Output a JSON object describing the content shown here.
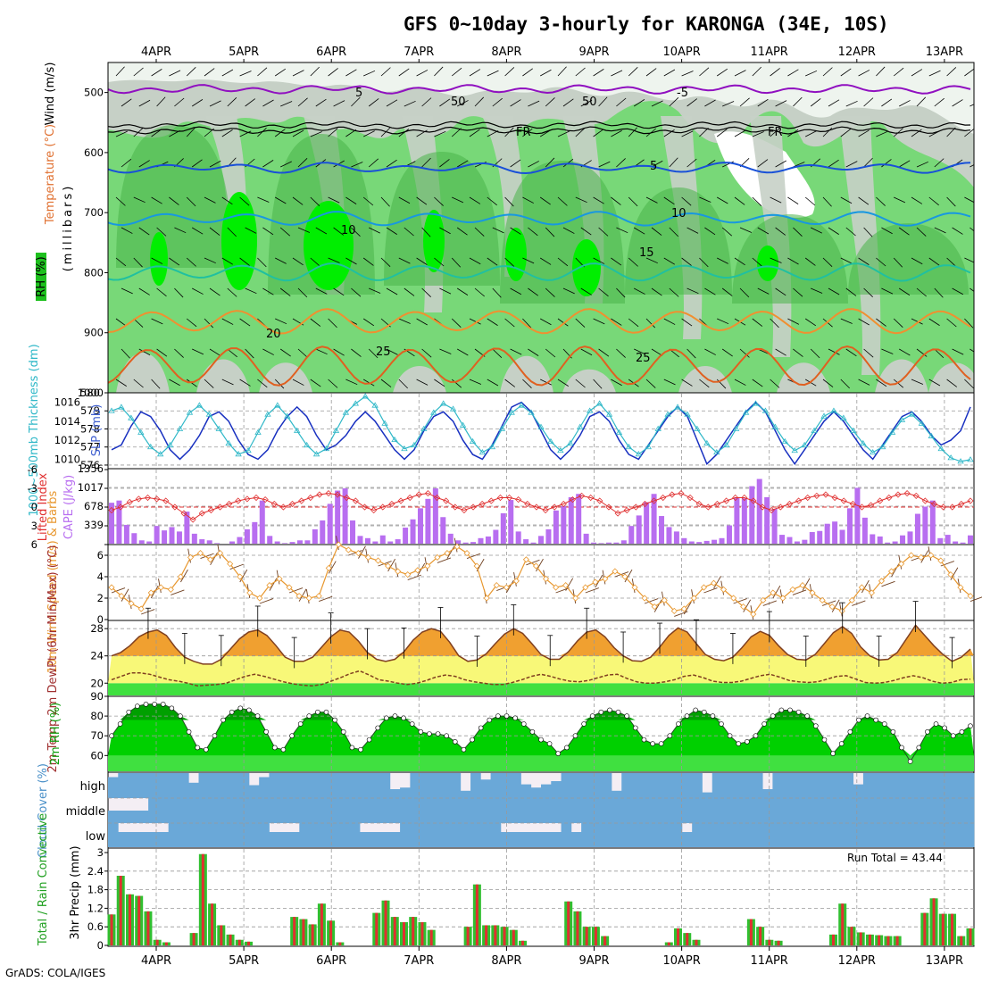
{
  "title": "GFS 0~10day 3-hourly for KARONGA (34E, 10S)",
  "credit": "GrADS: COLA/IGES",
  "run_total_label": "Run Total = 43.44",
  "dates": [
    "4APR",
    "5APR",
    "6APR",
    "7APR",
    "8APR",
    "9APR",
    "10APR",
    "11APR",
    "12APR",
    "13APR"
  ],
  "colors": {
    "rh_dark": "#48b448",
    "rh_mid": "#78d878",
    "rh_bright": "#00ee00",
    "dry_light": "#eef4ee",
    "dry_gray": "#c6d0c6",
    "slp": "#1830c0",
    "thickness": "#30b8c8",
    "lifted": "#e03030",
    "cape": "#b86ef0",
    "wind10m": "#e89830",
    "barb": "#704020",
    "temp_orange": "#f0a030",
    "temp_yellow": "#f8f878",
    "temp_green": "#40e040",
    "rh_green2m": "#00d000",
    "rh_green_dark": "#00a000",
    "cloud": "#6aa8d8",
    "cloud_bg": "#f4eef4",
    "precip_total": "#30c030",
    "precip_conv": "#e03030"
  },
  "chart_data": [
    {
      "type": "heatmap",
      "panel": "upper_air",
      "ylabels": [
        "Wind (m/s)",
        "Temperature (°C)",
        "RH (%)",
        "(millibars)"
      ],
      "yticks": [
        500,
        600,
        700,
        800,
        900,
        1000
      ],
      "ylim": [
        1000,
        450
      ],
      "isotherm_labels": [
        "5",
        "-5",
        "5",
        "10",
        "10",
        "15",
        "20",
        "25",
        "25",
        "FR",
        "FR",
        "50",
        "50"
      ]
    },
    {
      "type": "line",
      "panel": "slp_thickness",
      "ylabel_left": "1000~500mb Thickness (dm)",
      "ylabel_right": "SLP (mb)",
      "yticks_left": [
        576,
        577,
        578,
        579,
        580
      ],
      "yticks_right": [
        1010,
        1012,
        1014,
        1016
      ],
      "series": [
        {
          "name": "SLP",
          "values": [
            1011,
            1011.5,
            1013.5,
            1015,
            1014.5,
            1013,
            1011,
            1010,
            1011,
            1012.5,
            1014.5,
            1015,
            1014,
            1012,
            1010.5,
            1010,
            1011,
            1013,
            1014.5,
            1015.5,
            1014.5,
            1012.5,
            1011,
            1011.5,
            1012.5,
            1014,
            1015,
            1014,
            1012.5,
            1011,
            1010,
            1011,
            1013,
            1014.5,
            1015,
            1014,
            1012,
            1010.5,
            1010,
            1011.5,
            1013.5,
            1015.5,
            1016,
            1015,
            1013,
            1011,
            1010,
            1011,
            1012.5,
            1014.5,
            1015,
            1014,
            1012,
            1010.5,
            1010,
            1011.5,
            1013,
            1014.5,
            1015.5,
            1014.5,
            1012,
            1009.5,
            1010.5,
            1012,
            1013.5,
            1015,
            1016,
            1015,
            1013,
            1011,
            1009.5,
            1011,
            1012.5,
            1014,
            1015,
            1014,
            1012.5,
            1011,
            1010,
            1011.5,
            1013,
            1014.5,
            1015,
            1014,
            1012.5,
            1011.5,
            1012,
            1013,
            1015.5
          ]
        },
        {
          "name": "Thickness",
          "values": [
            579,
            579.2,
            578.6,
            577.8,
            577,
            576.6,
            577.1,
            578,
            578.9,
            579.3,
            578.8,
            578,
            577.2,
            576.6,
            576.8,
            577.8,
            578.8,
            579.3,
            578.7,
            577.9,
            577.1,
            576.6,
            576.9,
            577.9,
            578.9,
            579.4,
            579.8,
            579.3,
            578.3,
            577.4,
            576.9,
            577.1,
            578,
            578.9,
            579.4,
            579.1,
            578.2,
            577.3,
            576.7,
            577,
            578,
            578.9,
            579.3,
            578.9,
            578.1,
            577.3,
            576.8,
            577.2,
            578.1,
            579,
            579.4,
            578.8,
            577.8,
            577,
            576.6,
            577,
            578,
            578.8,
            579.2,
            578.8,
            578,
            577.2,
            576.7,
            577.1,
            578,
            578.9,
            579.4,
            579,
            578.1,
            577.3,
            576.8,
            577.1,
            577.9,
            578.7,
            579,
            578.6,
            577.9,
            577.2,
            576.7,
            577,
            577.8,
            578.5,
            578.8,
            578.3,
            577.6,
            576.9,
            576.4,
            576.2,
            576.3
          ]
        }
      ]
    },
    {
      "type": "bar",
      "panel": "cape_li",
      "ylabel_left": "Lifted Index",
      "ylabel_right": "CAPE (J/kg)",
      "yticks_left": [
        -6,
        -3,
        0,
        3,
        6
      ],
      "ytick_labels_left": [
        "-6",
        "-3",
        "0",
        "3",
        "6"
      ],
      "yticks_right": [
        339,
        678,
        1017,
        1356
      ],
      "series": [
        {
          "name": "CAPE",
          "values": [
            740,
            780,
            340,
            190,
            60,
            40,
            320,
            240,
            300,
            220,
            580,
            180,
            80,
            60,
            10,
            0,
            40,
            120,
            260,
            390,
            780,
            140,
            40,
            10,
            30,
            60,
            60,
            260,
            420,
            720,
            960,
            1000,
            420,
            140,
            100,
            40,
            150,
            40,
            80,
            290,
            440,
            640,
            810,
            1000,
            480,
            180,
            60,
            20,
            30,
            100,
            130,
            250,
            550,
            790,
            220,
            80,
            20,
            140,
            260,
            600,
            680,
            840,
            900,
            180,
            20,
            10,
            20,
            20,
            60,
            320,
            510,
            750,
            900,
            500,
            300,
            220,
            100,
            40,
            30,
            50,
            70,
            100,
            330,
            840,
            820,
            1040,
            1170,
            840,
            630,
            160,
            120,
            40,
            70,
            210,
            230,
            360,
            400,
            250,
            640,
            1010,
            470,
            170,
            130,
            20,
            40,
            150,
            220,
            540,
            670,
            780,
            100,
            160,
            40,
            20,
            150
          ]
        },
        {
          "name": "Lifted Index",
          "values": [
            0.5,
            0,
            -0.8,
            -1.3,
            -1.5,
            -1.3,
            -1,
            0,
            1,
            2,
            1,
            0.5,
            0,
            -0.5,
            -1,
            -1.3,
            -1.5,
            -1.2,
            -0.5,
            0,
            -0.5,
            -1,
            -1.5,
            -2,
            -2.2,
            -2,
            -1.5,
            -1,
            0,
            0.5,
            0,
            -0.5,
            -1,
            -1.5,
            -2,
            -2.2,
            -1.5,
            -1,
            0,
            0.5,
            0,
            -0.5,
            -1,
            -1.5,
            -1.5,
            -1.2,
            -0.5,
            0,
            0.5,
            0,
            -0.5,
            -1.2,
            -1.8,
            -1.5,
            -1,
            0,
            1,
            0.5,
            0,
            -0.5,
            -1,
            -1.5,
            -2,
            -2.2,
            -1.5,
            -0.5,
            0,
            -0.5,
            -1,
            -1.5,
            -1.5,
            -1,
            0,
            0.5,
            0,
            -0.5,
            -1,
            -1.5,
            -1.8,
            -2,
            -1.5,
            -1,
            -0.5,
            0,
            -0.3,
            -1,
            -1.5,
            -2,
            -2.2,
            -1.8,
            -1,
            -0.5,
            0,
            0,
            -0.5,
            -1
          ]
        }
      ]
    },
    {
      "type": "line",
      "panel": "wind10m",
      "ylabel": "10m Wind Speed (m/s) & Barbs",
      "yticks": [
        0,
        2,
        4,
        6
      ],
      "values": [
        3,
        2.2,
        1.5,
        1,
        2.5,
        3,
        2.8,
        4,
        5.8,
        6.2,
        5.6,
        6.2,
        5.2,
        4,
        2.5,
        2,
        3.2,
        3.8,
        3,
        2.2,
        2,
        2.2,
        4.8,
        7,
        6.5,
        6.2,
        5.8,
        5.5,
        5,
        4.5,
        4.2,
        4.6,
        5,
        5.8,
        6.2,
        6.8,
        6.2,
        5,
        2,
        3.2,
        3,
        3.6,
        5.6,
        5,
        3.8,
        3,
        3.2,
        2,
        3,
        3.5,
        3.8,
        4.5,
        4,
        3,
        2,
        1.2,
        1.8,
        0.8,
        1,
        2,
        3,
        3.4,
        2.8,
        2,
        1.2,
        0.5,
        1.8,
        2.5,
        2,
        2.8,
        3.2,
        2.5,
        1.8,
        1.2,
        0.8,
        1.8,
        3,
        2.5,
        3.6,
        4.5,
        5.2,
        6,
        5.8,
        6,
        5.5,
        4.2,
        3,
        2.2
      ]
    },
    {
      "type": "area",
      "panel": "temp2m",
      "ylabel": "2m Temp 2m DewPt (6hr Min/Max) (°C)",
      "yticks": [
        20,
        24,
        28
      ],
      "series": [
        {
          "name": "2m Temp",
          "values": [
            24,
            24.5,
            25.5,
            26.8,
            27.5,
            27.8,
            27,
            25.2,
            23.8,
            23.2,
            22.8,
            22.8,
            23.5,
            25,
            26.5,
            27.5,
            27.8,
            27,
            25.5,
            23.8,
            23.2,
            23.2,
            23.8,
            25.3,
            26.8,
            27.8,
            27.5,
            26.2,
            24.5,
            23.5,
            23.2,
            23.5,
            24.6,
            26.3,
            27.5,
            28,
            27.6,
            26,
            24,
            23.2,
            23.4,
            24.3,
            25.8,
            27.2,
            28,
            27.3,
            25.8,
            24.2,
            23.5,
            23.5,
            24.6,
            26.2,
            27.5,
            27.8,
            26.8,
            25.2,
            24,
            23.3,
            23.2,
            23.8,
            25.3,
            27,
            28.1,
            27.5,
            25.8,
            24.2,
            23.5,
            23.3,
            23.8,
            25.2,
            26.8,
            27.6,
            27,
            25.5,
            24.2,
            23.5,
            23.4,
            24.2,
            25.8,
            27.4,
            28.3,
            27.3,
            25.3,
            24,
            23.4,
            23.5,
            24.5,
            26.5,
            28.5,
            27,
            25.5,
            24.2,
            23.2,
            23.8,
            25
          ]
        },
        {
          "name": "2m DewPt",
          "values": [
            20.5,
            21,
            21.5,
            21.5,
            21.3,
            20.9,
            20.5,
            20.3,
            20,
            19.6,
            19.7,
            19.8,
            20,
            20.5,
            21,
            21.3,
            21,
            20.6,
            20.2,
            19.9,
            19.7,
            19.6,
            19.8,
            20.3,
            20.8,
            21.4,
            21.8,
            21.2,
            20.5,
            20.3,
            20,
            19.8,
            20,
            20.4,
            20.9,
            21.2,
            21,
            20.5,
            20.2,
            20,
            19.8,
            19.8,
            20.1,
            20.5,
            21,
            21.3,
            21,
            20.6,
            20.3,
            20.2,
            20.4,
            20.8,
            21.2,
            21.3,
            20.7,
            20.2,
            20,
            20,
            20.2,
            20.5,
            21,
            21.2,
            20.8,
            20.3,
            20.1,
            20.1,
            20.3,
            20.7,
            21.1,
            21.3,
            20.9,
            20.4,
            20.2,
            20.1,
            20.2,
            20.6,
            21,
            21.1,
            20.6,
            20.1,
            20,
            20.1,
            20.4,
            20.8,
            21.1,
            20.8,
            20.3,
            20,
            20.1,
            20.5,
            20.6
          ]
        }
      ]
    },
    {
      "type": "area",
      "panel": "rh2m",
      "ylabel": "2m RH (%)",
      "yticks": [
        60,
        70,
        80,
        90
      ],
      "values": [
        70,
        76,
        82,
        85,
        86,
        86,
        86,
        84,
        80,
        72,
        64,
        63,
        70,
        78,
        82,
        84,
        83,
        80,
        72,
        64,
        63,
        70,
        76,
        80,
        82,
        82,
        78,
        72,
        64,
        63,
        68,
        74,
        79,
        80,
        79,
        76,
        72,
        71,
        71,
        70,
        67,
        63,
        68,
        74,
        78,
        80,
        80,
        79,
        76,
        72,
        68,
        66,
        61,
        64,
        70,
        76,
        80,
        82,
        83,
        82,
        80,
        74,
        68,
        66,
        66,
        70,
        76,
        80,
        83,
        82,
        80,
        76,
        70,
        66,
        67,
        70,
        76,
        80,
        83,
        83,
        82,
        80,
        75,
        68,
        61,
        66,
        72,
        78,
        80,
        78,
        76,
        72,
        64,
        57,
        64,
        72,
        76,
        74,
        70,
        72,
        75
      ]
    },
    {
      "type": "bar",
      "panel": "cloud_cover",
      "ylabel": "Cloud Cover (%)",
      "categories": [
        "high",
        "middle",
        "low"
      ]
    },
    {
      "type": "bar",
      "panel": "precip",
      "ylabel_left": "Total / Rain Convective",
      "ylabel": "3hr Precip (mm)",
      "yticks": [
        0,
        0.6,
        1.2,
        1.8,
        2.4,
        3
      ],
      "ytick_labels": [
        "0",
        "0.6",
        "1.2",
        "1.8",
        "2.4",
        "3"
      ],
      "values": [
        1,
        2.25,
        1.65,
        1.6,
        1.1,
        0.18,
        0.1,
        0,
        0,
        0.4,
        2.95,
        1.35,
        0.65,
        0.35,
        0.18,
        0.12,
        0,
        0,
        0,
        0,
        0.92,
        0.85,
        0.68,
        1.35,
        0.8,
        0.1,
        0,
        0,
        0,
        1.05,
        1.45,
        0.92,
        0.75,
        0.92,
        0.75,
        0.5,
        0,
        0,
        0,
        0.6,
        1.97,
        0.65,
        0.65,
        0.6,
        0.5,
        0.15,
        0,
        0,
        0,
        0,
        1.42,
        1.1,
        0.6,
        0.6,
        0.3,
        0,
        0,
        0,
        0,
        0,
        0,
        0.1,
        0.55,
        0.4,
        0.18,
        0,
        0,
        0,
        0,
        0,
        0.85,
        0.6,
        0.18,
        0.15,
        0,
        0,
        0,
        0,
        0,
        0.35,
        1.35,
        0.6,
        0.42,
        0.35,
        0.33,
        0.3,
        0.3,
        0,
        0,
        1.05,
        1.52,
        1.02,
        1.02,
        0.3,
        0.55
      ]
    }
  ]
}
